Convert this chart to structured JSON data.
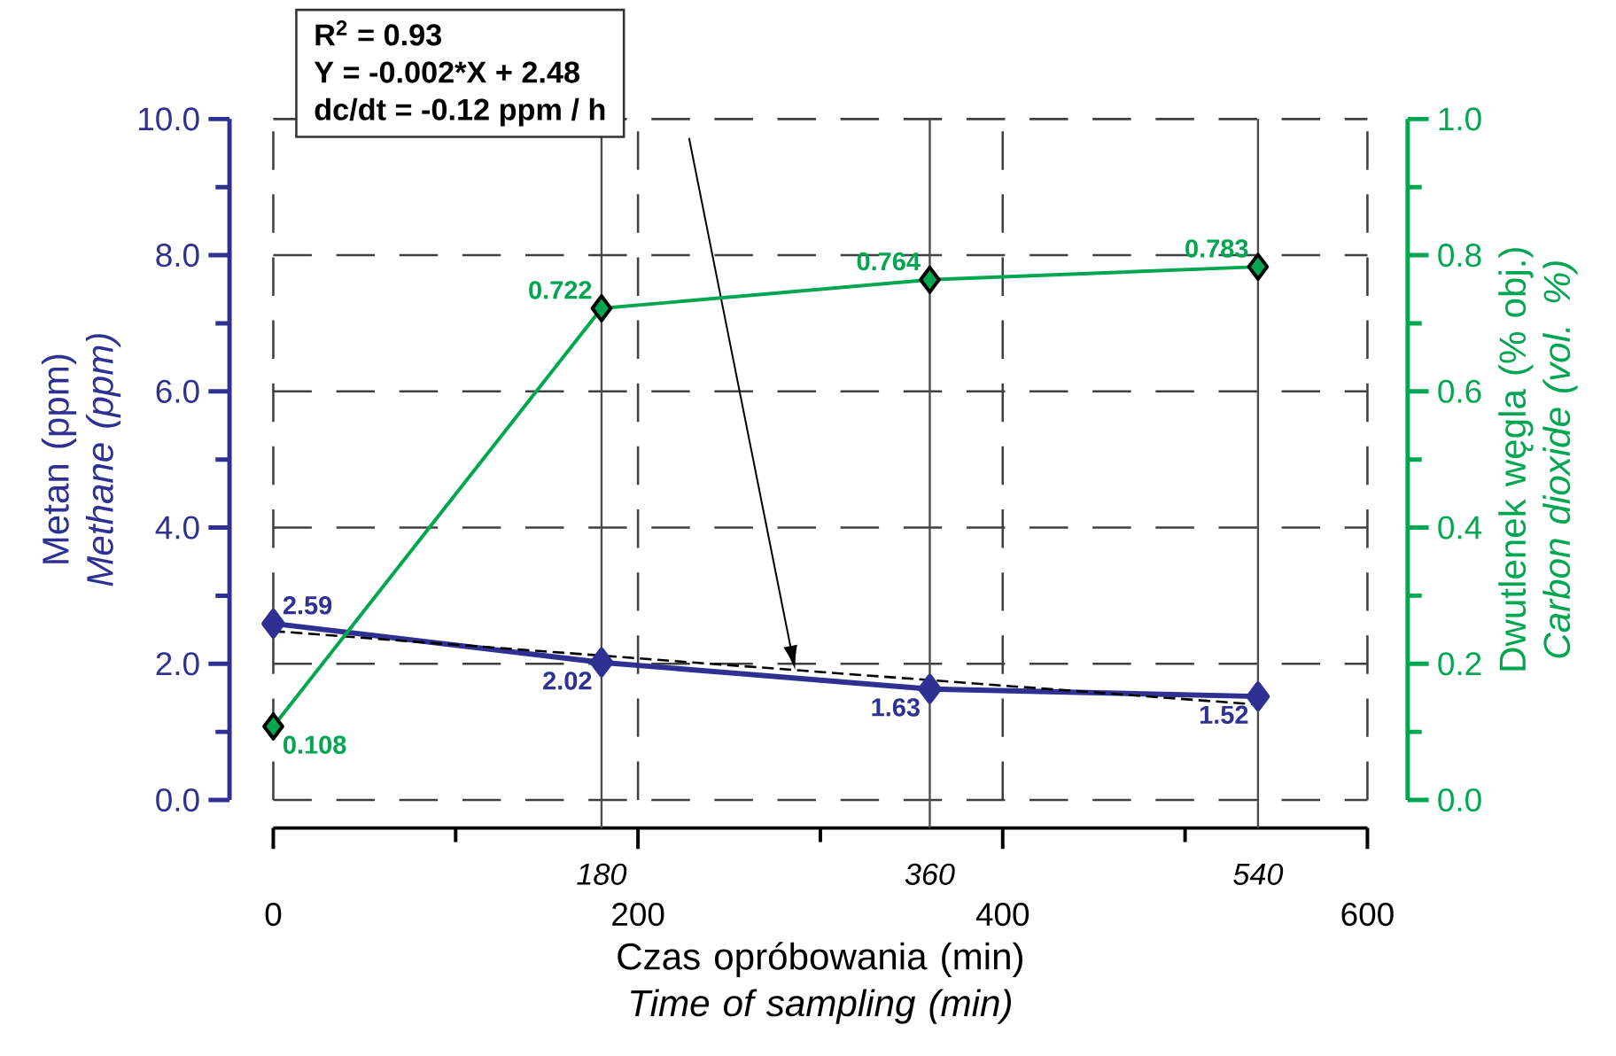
{
  "chart_data": {
    "type": "line",
    "xlabel": "Czas opróbowania (min) *Time of sampling (min)*",
    "ylabel": "Metan (ppm) *Methane (ppm)*",
    "y2label": "Dwutlenek węgla (% obj.) *Carbon dioxide (vol. %)*",
    "x": [
      0,
      180,
      360,
      540
    ],
    "series": [
      {
        "color": "#2e3192",
        "values": [
          2.59,
          2.02,
          1.63,
          1.52
        ],
        "value_labels": [
          "2.59",
          "2.02",
          "1.63",
          "1.52"
        ],
        "marker": "diamond"
      },
      {
        "color": "#00a650",
        "axis": "y2",
        "values": [
          0.108,
          0.722,
          0.764,
          0.783
        ],
        "value_labels": [
          "0.108",
          "0.722",
          "0.764",
          "0.783"
        ],
        "marker": "diamond"
      },
      {
        "color": "#000000",
        "x": [
          0,
          540
        ],
        "values": [
          2.48,
          1.4
        ],
        "marker": "none",
        "line_style": "dashed"
      }
    ],
    "xlim": [
      0,
      600
    ],
    "xticks": [
      0,
      200,
      400,
      600
    ],
    "ylim": [
      0,
      10
    ],
    "yticks": [
      {
        "value": 0,
        "label": "0.0"
      },
      {
        "value": 2,
        "label": "2.0"
      },
      {
        "value": 4,
        "label": "4.0"
      },
      {
        "value": 6,
        "label": "6.0"
      },
      {
        "value": 8,
        "label": "8.0"
      },
      {
        "value": 10,
        "label": "10.0"
      }
    ],
    "y2lim": [
      0,
      1
    ],
    "y2ticks": [
      {
        "value": 0,
        "label": "0.0"
      },
      {
        "value": 0.2,
        "label": "0.2"
      },
      {
        "value": 0.4,
        "label": "0.4"
      },
      {
        "value": 0.6,
        "label": "0.6"
      },
      {
        "value": 0.8,
        "label": "0.8"
      },
      {
        "value": 1,
        "label": "1.0"
      }
    ],
    "ref_lines": [
      {
        "axis": "x",
        "value": 180,
        "label": "180"
      },
      {
        "axis": "x",
        "value": 360,
        "label": "360"
      },
      {
        "axis": "x",
        "value": 540,
        "label": "540"
      }
    ],
    "annotations": [
      "R$^{2}$ = 0.93",
      "Y = -0.002*X + 2.48",
      "dc/dt = -0.12 ppm / h"
    ],
    "grid": true
  }
}
